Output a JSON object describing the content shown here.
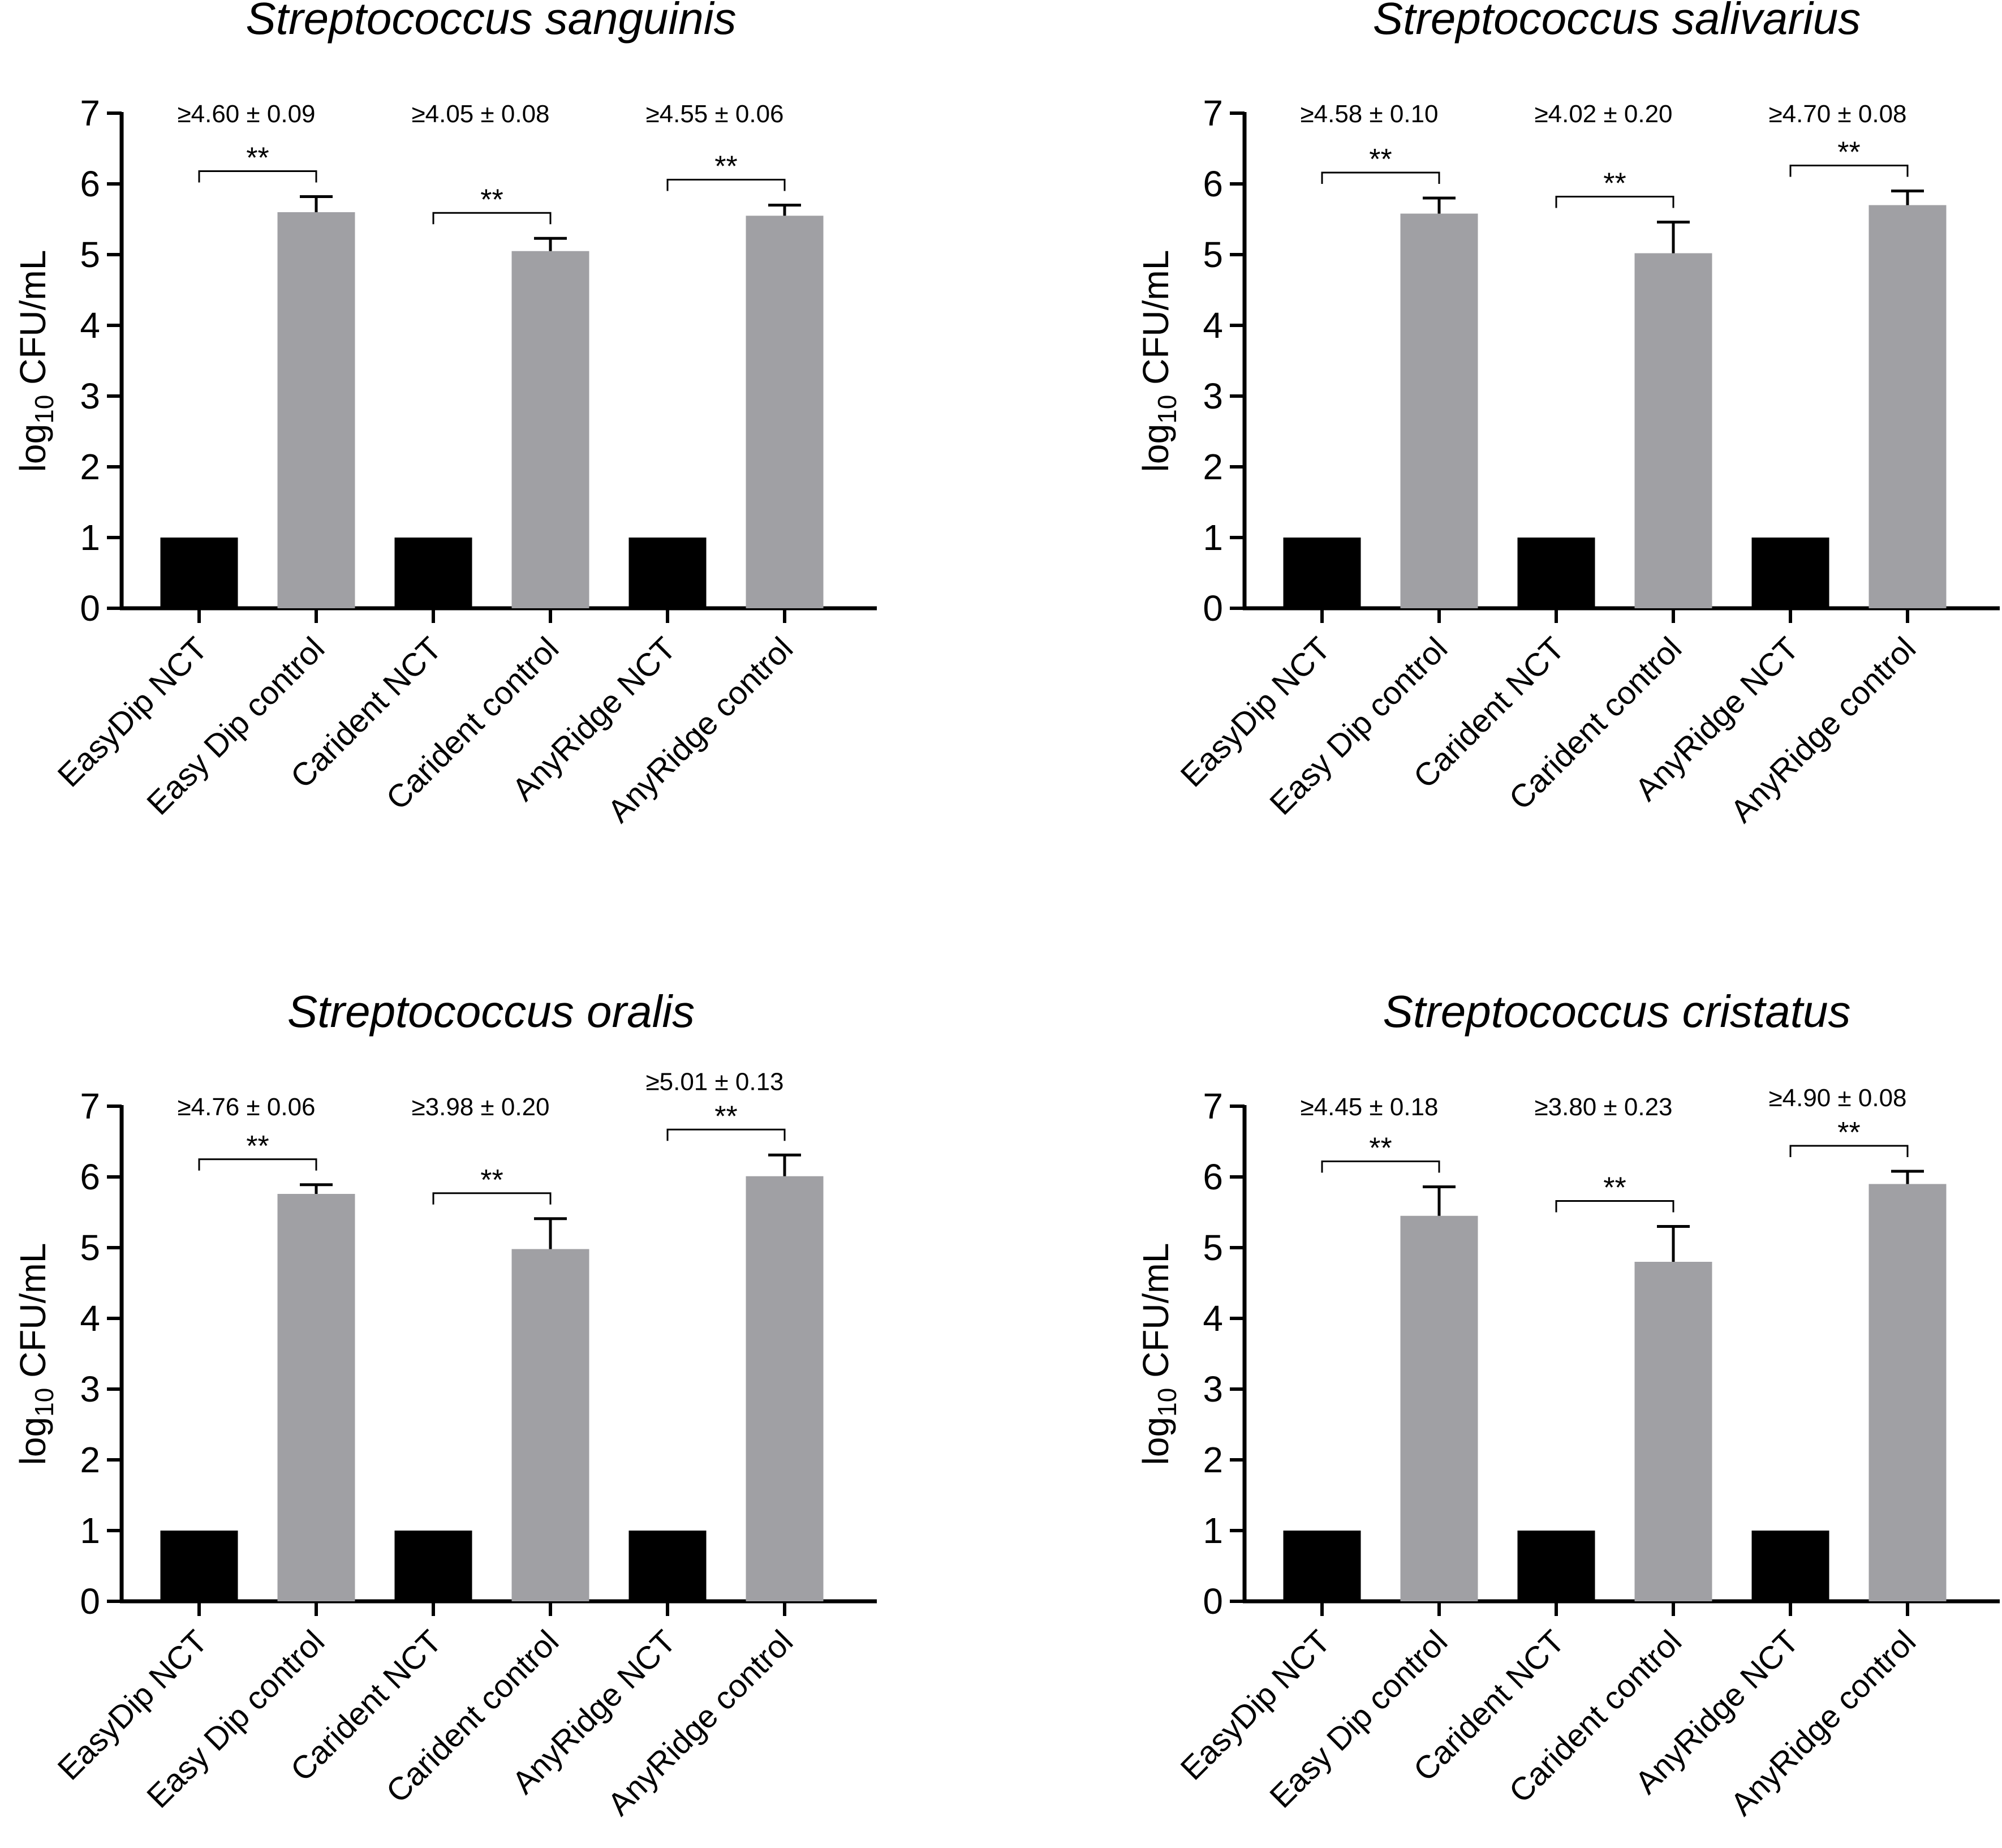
{
  "colors": {
    "nct": "#000000",
    "control": "#a0a0a4",
    "axis": "#000000"
  },
  "chart_data": [
    {
      "type": "bar",
      "title": "Streptococcus sanguinis",
      "ylabel_main": "log",
      "ylabel_sub": "10",
      "ylabel_unit": "CFU/mL",
      "ylim": [
        0,
        7
      ],
      "yticks": [
        "0",
        "1",
        "2",
        "3",
        "4",
        "5",
        "6",
        "7"
      ],
      "categories": [
        "EasyDip NCT",
        "Easy Dip control",
        "Carident NCT",
        "Carident control",
        "AnyRidge NCT",
        "AnyRidge control"
      ],
      "values": [
        1,
        5.6,
        1,
        5.05,
        1,
        5.55
      ],
      "errors": [
        0,
        0.22,
        0,
        0.18,
        0,
        0.15
      ],
      "reductions": [
        "≥4.60 ± 0.09",
        "≥4.05 ± 0.08",
        "≥4.55 ± 0.06"
      ],
      "significance": [
        "**",
        "**",
        "**"
      ]
    },
    {
      "type": "bar",
      "title": "Streptococcus salivarius",
      "ylabel_main": "log",
      "ylabel_sub": "10",
      "ylabel_unit": "CFU/mL",
      "ylim": [
        0,
        7
      ],
      "yticks": [
        "0",
        "1",
        "2",
        "3",
        "4",
        "5",
        "6",
        "7"
      ],
      "categories": [
        "EasyDip NCT",
        "Easy Dip control",
        "Carident NCT",
        "Carident control",
        "AnyRidge NCT",
        "AnyRidge control"
      ],
      "values": [
        1,
        5.58,
        1,
        5.02,
        1,
        5.7
      ],
      "errors": [
        0,
        0.22,
        0,
        0.44,
        0,
        0.2
      ],
      "reductions": [
        "≥4.58 ± 0.10",
        "≥4.02 ± 0.20",
        "≥4.70 ± 0.08"
      ],
      "significance": [
        "**",
        "**",
        "**"
      ]
    },
    {
      "type": "bar",
      "title": "Streptococcus oralis",
      "ylabel_main": "log",
      "ylabel_sub": "10",
      "ylabel_unit": "CFU/mL",
      "ylim": [
        0,
        7
      ],
      "yticks": [
        "0",
        "1",
        "2",
        "3",
        "4",
        "5",
        "6",
        "7"
      ],
      "categories": [
        "EasyDip NCT",
        "Easy Dip control",
        "Carident NCT",
        "Carident control",
        "AnyRidge NCT",
        "AnyRidge control"
      ],
      "values": [
        1,
        5.76,
        1,
        4.98,
        1,
        6.01
      ],
      "errors": [
        0,
        0.13,
        0,
        0.43,
        0,
        0.3
      ],
      "reductions": [
        "≥4.76 ± 0.06",
        "≥3.98 ± 0.20",
        "≥5.01 ± 0.13"
      ],
      "significance": [
        "**",
        "**",
        "**"
      ]
    },
    {
      "type": "bar",
      "title": "Streptococcus cristatus",
      "ylabel_main": "log",
      "ylabel_sub": "10",
      "ylabel_unit": "CFU/mL",
      "ylim": [
        0,
        7
      ],
      "yticks": [
        "0",
        "1",
        "2",
        "3",
        "4",
        "5",
        "6",
        "7"
      ],
      "categories": [
        "EasyDip NCT",
        "Easy Dip control",
        "Carident NCT",
        "Carident control",
        "AnyRidge NCT",
        "AnyRidge control"
      ],
      "values": [
        1,
        5.45,
        1,
        4.8,
        1,
        5.9
      ],
      "errors": [
        0,
        0.41,
        0,
        0.5,
        0,
        0.18
      ],
      "reductions": [
        "≥4.45 ± 0.18",
        "≥3.80 ± 0.23",
        "≥4.90 ± 0.08"
      ],
      "significance": [
        "**",
        "**",
        "**"
      ]
    }
  ]
}
